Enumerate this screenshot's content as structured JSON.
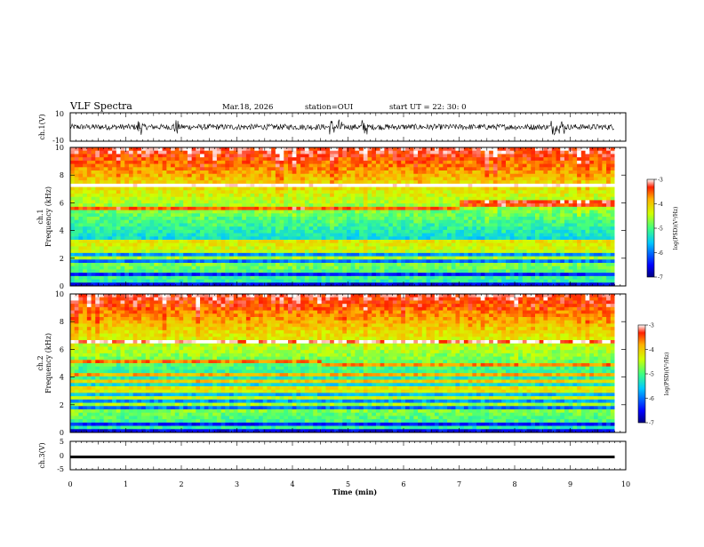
{
  "header": {
    "title": "VLF Spectra",
    "date": "Mar.18, 2026",
    "station": "station=OUI",
    "start": "start  UT =   22: 30: 0"
  },
  "chart_data": [
    {
      "type": "line",
      "name": "ch1-waveform",
      "ylabel": "ch.1(V)",
      "ylim": [
        -10,
        10
      ],
      "yticks": [
        10,
        -10
      ],
      "x_unit": "min",
      "xlim": [
        0,
        10
      ],
      "data_end": 9.8,
      "baseline": 0,
      "noise_amplitude": 2,
      "burst_times": [
        1.25,
        1.9,
        4.7,
        4.85,
        5.3,
        8.7,
        8.85
      ]
    },
    {
      "type": "heatmap",
      "name": "ch1-spectrogram",
      "ylabel": "ch.1 Frequency (kHz)",
      "ylim": [
        0,
        10
      ],
      "yticks": [
        0,
        2,
        4,
        6,
        8,
        10
      ],
      "x_unit": "min",
      "xlim": [
        0,
        10
      ],
      "data_end": 9.8,
      "colorbar": {
        "label": "log(PSD)(V²/Hz)",
        "range": [
          -7,
          -3
        ],
        "ticks": [
          "-3",
          "-4",
          "-5",
          "-6",
          "-7"
        ]
      },
      "lines_khz": [
        0.3,
        0.55,
        1.0,
        1.3,
        1.6,
        2.0,
        2.4,
        2.75,
        3.0,
        3.2,
        7.2
      ],
      "step_line": {
        "before": 5.6,
        "after": 5.95,
        "at_min": 7.0
      }
    },
    {
      "type": "heatmap",
      "name": "ch2-spectrogram",
      "ylabel": "ch.2 Frequency (kHz)",
      "ylim": [
        0,
        10
      ],
      "yticks": [
        0,
        2,
        4,
        6,
        8,
        10
      ],
      "x_unit": "min",
      "xlim": [
        0,
        10
      ],
      "data_end": 9.8,
      "colorbar": {
        "label": "log(PSD)(V²/Hz)",
        "range": [
          -7,
          -3
        ],
        "ticks": [
          "-3",
          "-4",
          "-5",
          "-6",
          "-7"
        ]
      },
      "lines_khz": [
        0.4,
        0.8,
        1.2,
        1.6,
        2.0,
        2.6,
        2.9,
        3.2,
        3.6,
        4.1,
        6.6
      ],
      "step_line": {
        "before": 5.1,
        "after": 4.9,
        "at_min": 4.5
      }
    },
    {
      "type": "line",
      "name": "ch3-waveform",
      "ylabel": "ch.3(V)",
      "ylim": [
        -5,
        5
      ],
      "yticks": [
        5,
        0,
        -5
      ],
      "x_unit": "min",
      "xlim": [
        0,
        10
      ],
      "data_end": 9.8,
      "baseline": -0.5,
      "noise_amplitude": 0.3
    }
  ],
  "x_axis": {
    "label": "Time (min)",
    "ticks": [
      "0",
      "1",
      "2",
      "3",
      "4",
      "5",
      "6",
      "7",
      "8",
      "9",
      "10"
    ]
  }
}
